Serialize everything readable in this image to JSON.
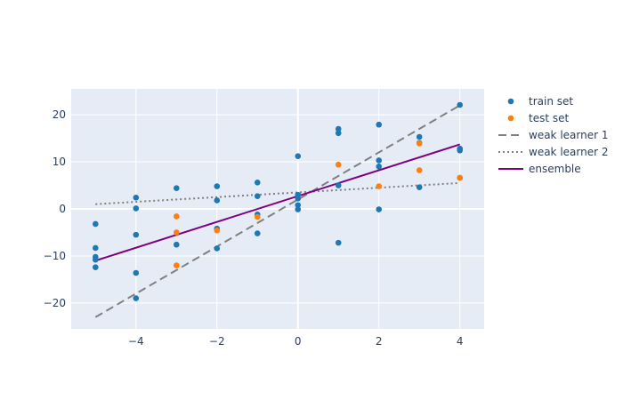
{
  "chart_data": {
    "type": "scatter",
    "title": "",
    "xlabel": "",
    "ylabel": "",
    "xlim": [
      -5.6,
      4.6
    ],
    "ylim": [
      -25.5,
      25.5
    ],
    "x_ticks": [
      -4,
      -2,
      0,
      2,
      4
    ],
    "y_ticks": [
      -20,
      -10,
      0,
      10,
      20
    ],
    "x_tick_labels": [
      "−4",
      "−2",
      "0",
      "2",
      "4"
    ],
    "y_tick_labels": [
      "−20",
      "−10",
      "0",
      "10",
      "20"
    ],
    "grid": true,
    "legend_position": "right",
    "series": [
      {
        "name": "train set",
        "kind": "markers",
        "color": "#1f77b4",
        "points": [
          [
            -5,
            -3.2
          ],
          [
            -5,
            -8.3
          ],
          [
            -5,
            -10.2
          ],
          [
            -5,
            -10.8
          ],
          [
            -5,
            -12.4
          ],
          [
            -4,
            2.4
          ],
          [
            -4,
            0.1
          ],
          [
            -4,
            -5.5
          ],
          [
            -4,
            -13.6
          ],
          [
            -4,
            -19.0
          ],
          [
            -3,
            4.4
          ],
          [
            -3,
            -7.6
          ],
          [
            -2,
            4.8
          ],
          [
            -2,
            1.8
          ],
          [
            -2,
            -4.2
          ],
          [
            -2,
            -8.4
          ],
          [
            -1,
            5.6
          ],
          [
            -1,
            2.7
          ],
          [
            -1,
            -1.2
          ],
          [
            -1,
            -5.2
          ],
          [
            0,
            11.2
          ],
          [
            0,
            3.0
          ],
          [
            0,
            2.2
          ],
          [
            0,
            0.8
          ],
          [
            0,
            -0.1
          ],
          [
            1,
            17.0
          ],
          [
            1,
            16.1
          ],
          [
            1,
            5.0
          ],
          [
            1,
            -7.2
          ],
          [
            2,
            17.9
          ],
          [
            2,
            10.3
          ],
          [
            2,
            9.0
          ],
          [
            2,
            -0.1
          ],
          [
            3,
            15.3
          ],
          [
            3,
            14.0
          ],
          [
            3,
            4.6
          ],
          [
            4,
            22.1
          ],
          [
            4,
            12.8
          ],
          [
            4,
            12.4
          ],
          [
            4,
            6.6
          ]
        ]
      },
      {
        "name": "test set",
        "kind": "markers",
        "color": "#ff7f0e",
        "points": [
          [
            -3,
            -1.6
          ],
          [
            -3,
            -5.0
          ],
          [
            -3,
            -12.0
          ],
          [
            -2,
            -4.6
          ],
          [
            -1,
            -1.7
          ],
          [
            1,
            9.4
          ],
          [
            2,
            4.8
          ],
          [
            3,
            13.9
          ],
          [
            3,
            8.2
          ],
          [
            4,
            6.6
          ]
        ]
      },
      {
        "name": "weak learner 1",
        "kind": "line",
        "dash": "dash",
        "color": "#808080",
        "points": [
          [
            -5,
            -23.0
          ],
          [
            4,
            22.0
          ]
        ]
      },
      {
        "name": "weak learner 2",
        "kind": "line",
        "dash": "dot",
        "color": "#808080",
        "points": [
          [
            -5,
            1.0
          ],
          [
            4,
            5.5
          ]
        ]
      },
      {
        "name": "ensemble",
        "kind": "line",
        "dash": "solid",
        "color": "#800080",
        "points": [
          [
            -5,
            -11.0
          ],
          [
            4,
            13.7
          ]
        ]
      }
    ]
  }
}
